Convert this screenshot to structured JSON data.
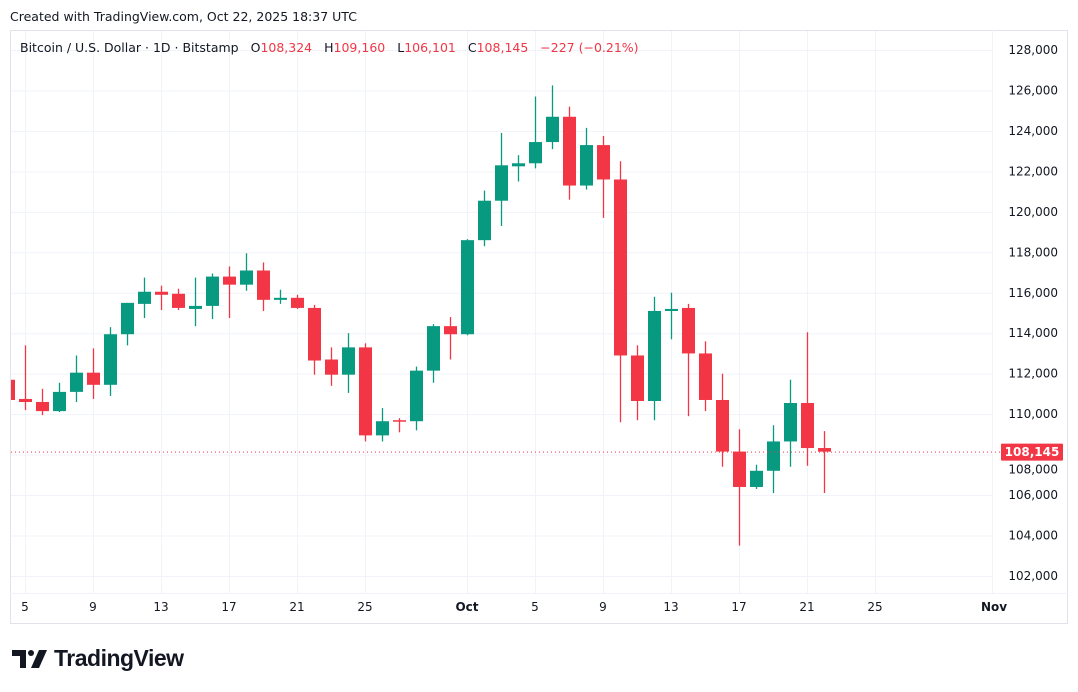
{
  "header": {
    "created": "Created with TradingView.com, Oct 22, 2025 18:37 UTC",
    "symbol": "Bitcoin / U.S. Dollar · 1D · Bitstamp",
    "o_label": "O",
    "o_value": "108,324",
    "h_label": "H",
    "h_value": "109,160",
    "l_label": "L",
    "l_value": "106,101",
    "c_label": "C",
    "c_value": "108,145",
    "change": "−227 (−0.21%)"
  },
  "logo": {
    "text": "TradingView"
  },
  "colors": {
    "up": "#089981",
    "down": "#f23645",
    "grid": "#f0f3fa",
    "text": "#131722"
  },
  "chart_data": {
    "type": "candlestick",
    "title": "Bitcoin / U.S. Dollar · 1D · Bitstamp",
    "ylim": [
      101000,
      129000
    ],
    "grid": true,
    "last_price": 108145,
    "last_price_label": "108,145",
    "y_ticks": [
      "102,000",
      "104,000",
      "106,000",
      "108,000",
      "110,000",
      "112,000",
      "114,000",
      "116,000",
      "118,000",
      "120,000",
      "122,000",
      "124,000",
      "126,000",
      "128,000"
    ],
    "y_tick_values": [
      102000,
      104000,
      106000,
      108000,
      110000,
      112000,
      114000,
      116000,
      118000,
      120000,
      122000,
      124000,
      126000,
      128000
    ],
    "x_ticks": [
      {
        "label": "5",
        "date": "2025-09-05"
      },
      {
        "label": "9",
        "date": "2025-09-09"
      },
      {
        "label": "13",
        "date": "2025-09-13"
      },
      {
        "label": "17",
        "date": "2025-09-17"
      },
      {
        "label": "21",
        "date": "2025-09-21"
      },
      {
        "label": "25",
        "date": "2025-09-25"
      },
      {
        "label": "Oct",
        "date": "2025-10-01",
        "bold": true
      },
      {
        "label": "5",
        "date": "2025-10-05"
      },
      {
        "label": "9",
        "date": "2025-10-09"
      },
      {
        "label": "13",
        "date": "2025-10-13"
      },
      {
        "label": "17",
        "date": "2025-10-17"
      },
      {
        "label": "21",
        "date": "2025-10-21"
      },
      {
        "label": "25",
        "date": "2025-10-25"
      },
      {
        "label": "Nov",
        "date": "2025-11-01",
        "bold": true
      }
    ],
    "columns": [
      "date",
      "open",
      "high",
      "low",
      "close"
    ],
    "candles": [
      [
        "2025-09-04",
        111700,
        112100,
        110600,
        110700
      ],
      [
        "2025-09-05",
        110750,
        113400,
        110200,
        110600
      ],
      [
        "2025-09-06",
        110600,
        111250,
        109950,
        110150
      ],
      [
        "2025-09-07",
        110150,
        111550,
        110100,
        111100
      ],
      [
        "2025-09-08",
        111100,
        112900,
        110600,
        112050
      ],
      [
        "2025-09-09",
        112050,
        113250,
        110750,
        111450
      ],
      [
        "2025-09-10",
        111450,
        114300,
        110900,
        113950
      ],
      [
        "2025-09-11",
        113950,
        115500,
        113400,
        115500
      ],
      [
        "2025-09-12",
        115450,
        116750,
        114750,
        116050
      ],
      [
        "2025-09-13",
        116050,
        116350,
        115150,
        115900
      ],
      [
        "2025-09-14",
        115950,
        116200,
        115150,
        115250
      ],
      [
        "2025-09-15",
        115200,
        116750,
        114350,
        115350
      ],
      [
        "2025-09-16",
        115350,
        116950,
        114700,
        116800
      ],
      [
        "2025-09-17",
        116800,
        117300,
        114750,
        116400
      ],
      [
        "2025-09-18",
        116400,
        117950,
        116100,
        117100
      ],
      [
        "2025-09-19",
        117100,
        117500,
        115100,
        115650
      ],
      [
        "2025-09-20",
        115650,
        116150,
        115450,
        115750
      ],
      [
        "2025-09-21",
        115750,
        115900,
        115200,
        115250
      ],
      [
        "2025-09-22",
        115250,
        115400,
        111950,
        112650
      ],
      [
        "2025-09-23",
        112700,
        113300,
        111400,
        111950
      ],
      [
        "2025-09-24",
        111950,
        114000,
        111050,
        113300
      ],
      [
        "2025-09-25",
        113300,
        113500,
        108650,
        108950
      ],
      [
        "2025-09-26",
        108950,
        110300,
        108650,
        109650
      ],
      [
        "2025-09-27",
        109700,
        109800,
        109100,
        109650
      ],
      [
        "2025-09-28",
        109650,
        112350,
        109200,
        112150
      ],
      [
        "2025-09-29",
        112150,
        114450,
        111550,
        114350
      ],
      [
        "2025-09-30",
        114350,
        114800,
        112700,
        113950
      ],
      [
        "2025-10-01",
        113950,
        118650,
        113900,
        118600
      ],
      [
        "2025-10-02",
        118600,
        121050,
        118300,
        120550
      ],
      [
        "2025-10-03",
        120550,
        123900,
        119300,
        122300
      ],
      [
        "2025-10-04",
        122250,
        122800,
        121500,
        122400
      ],
      [
        "2025-10-05",
        122400,
        125700,
        122150,
        123450
      ],
      [
        "2025-10-06",
        123450,
        126250,
        123100,
        124700
      ],
      [
        "2025-10-07",
        124700,
        125200,
        120600,
        121300
      ],
      [
        "2025-10-08",
        121300,
        124150,
        121100,
        123300
      ],
      [
        "2025-10-09",
        123300,
        123750,
        119700,
        121600
      ],
      [
        "2025-10-10",
        121600,
        122500,
        109600,
        112900
      ],
      [
        "2025-10-11",
        112900,
        113400,
        109700,
        110650
      ],
      [
        "2025-10-12",
        110650,
        115800,
        109700,
        115100
      ],
      [
        "2025-10-13",
        115100,
        116000,
        113700,
        115200
      ],
      [
        "2025-10-14",
        115250,
        115450,
        109900,
        113000
      ],
      [
        "2025-10-15",
        113000,
        113600,
        110150,
        110700
      ],
      [
        "2025-10-16",
        110700,
        112000,
        107400,
        108150
      ],
      [
        "2025-10-17",
        108150,
        109250,
        103500,
        106400
      ],
      [
        "2025-10-18",
        106400,
        107500,
        106300,
        107200
      ],
      [
        "2025-10-19",
        107200,
        109450,
        106100,
        108650
      ],
      [
        "2025-10-20",
        108650,
        111700,
        107400,
        110550
      ],
      [
        "2025-10-21",
        110550,
        114050,
        107450,
        108324
      ],
      [
        "2025-10-22",
        108324,
        109160,
        106101,
        108145
      ]
    ]
  }
}
